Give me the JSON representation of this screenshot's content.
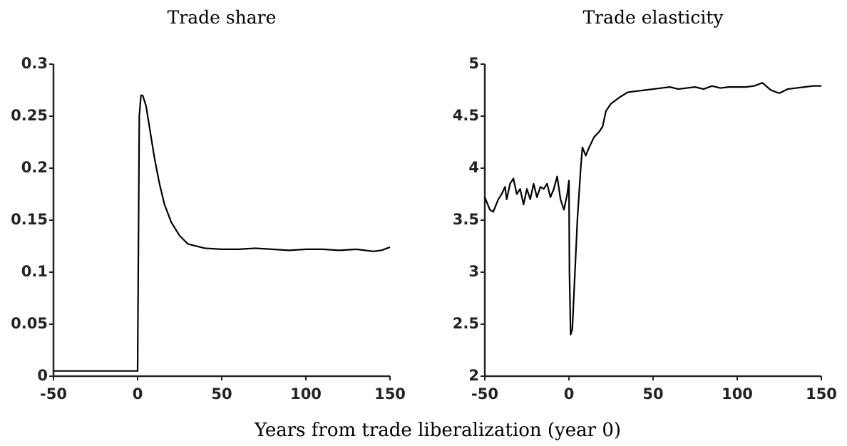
{
  "xlabel": "Years from trade liberalization (year 0)",
  "chart_data": [
    {
      "type": "line",
      "title": "Trade share",
      "x": [
        -50,
        -40,
        -30,
        -20,
        -10,
        -1,
        0,
        1,
        2,
        3,
        5,
        8,
        10,
        13,
        16,
        20,
        25,
        30,
        40,
        50,
        60,
        70,
        80,
        90,
        100,
        110,
        120,
        130,
        140,
        145,
        150
      ],
      "series": [
        {
          "name": "Trade share",
          "color": "#000000",
          "values": [
            0.005,
            0.005,
            0.005,
            0.005,
            0.005,
            0.005,
            0.005,
            0.25,
            0.27,
            0.27,
            0.26,
            0.23,
            0.21,
            0.185,
            0.165,
            0.148,
            0.135,
            0.127,
            0.123,
            0.122,
            0.122,
            0.123,
            0.122,
            0.121,
            0.122,
            0.122,
            0.121,
            0.122,
            0.12,
            0.121,
            0.124
          ]
        }
      ],
      "xlim": [
        -50,
        150
      ],
      "xticks": [
        -50,
        0,
        50,
        100,
        150
      ],
      "ylim": [
        0,
        0.3
      ],
      "yticks": [
        0,
        0.05,
        0.1,
        0.15,
        0.2,
        0.25,
        0.3
      ]
    },
    {
      "type": "line",
      "title": "Trade elasticity",
      "x": [
        -50,
        -47,
        -45,
        -42,
        -40,
        -38,
        -37,
        -35,
        -33,
        -31,
        -29,
        -27,
        -25,
        -23,
        -21,
        -19,
        -17,
        -15,
        -13,
        -11,
        -9,
        -7,
        -5,
        -3,
        -1,
        0,
        0.3,
        1,
        2,
        3,
        5,
        7,
        8,
        10,
        12,
        15,
        18,
        20,
        22,
        25,
        30,
        35,
        40,
        45,
        50,
        55,
        60,
        65,
        70,
        75,
        80,
        85,
        90,
        95,
        100,
        105,
        110,
        115,
        120,
        125,
        130,
        135,
        140,
        145,
        150
      ],
      "series": [
        {
          "name": "Trade elasticity",
          "color": "#000000",
          "values": [
            3.72,
            3.6,
            3.58,
            3.7,
            3.75,
            3.82,
            3.7,
            3.85,
            3.9,
            3.75,
            3.8,
            3.65,
            3.8,
            3.7,
            3.85,
            3.72,
            3.82,
            3.8,
            3.85,
            3.72,
            3.8,
            3.92,
            3.7,
            3.6,
            3.75,
            3.88,
            3.0,
            2.4,
            2.45,
            2.8,
            3.5,
            4.0,
            4.2,
            4.12,
            4.2,
            4.3,
            4.35,
            4.4,
            4.55,
            4.62,
            4.68,
            4.73,
            4.74,
            4.75,
            4.76,
            4.77,
            4.78,
            4.76,
            4.77,
            4.78,
            4.76,
            4.79,
            4.77,
            4.78,
            4.78,
            4.78,
            4.79,
            4.82,
            4.75,
            4.72,
            4.76,
            4.77,
            4.78,
            4.79,
            4.79
          ]
        }
      ],
      "xlim": [
        -50,
        150
      ],
      "xticks": [
        -50,
        0,
        50,
        100,
        150
      ],
      "ylim": [
        2,
        5
      ],
      "yticks": [
        2,
        2.5,
        3,
        3.5,
        4,
        4.5,
        5
      ]
    }
  ]
}
